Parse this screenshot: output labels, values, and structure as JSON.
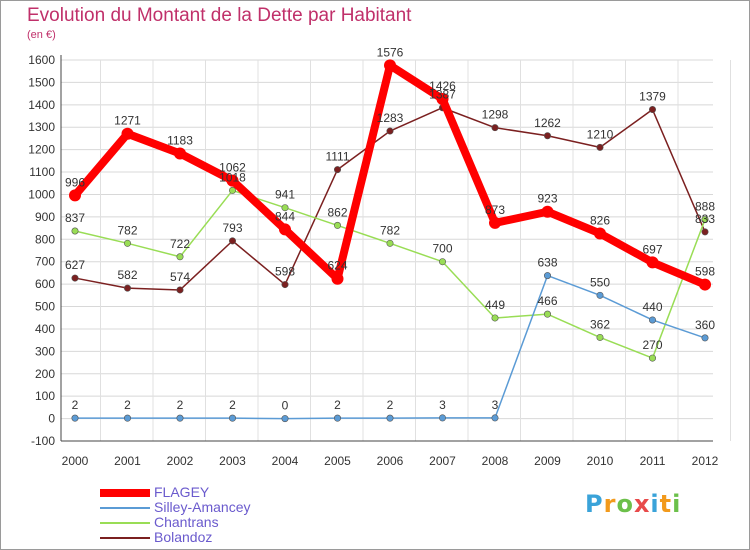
{
  "header": {
    "title": "Evolution du Montant de la Dette par Habitant",
    "unit": "(en €)"
  },
  "logo": {
    "text": "Proxiti"
  },
  "chart_data": {
    "type": "line",
    "title": "Evolution du Montant de la Dette par Habitant",
    "subtitle": "(en €)",
    "x": [
      "2000",
      "2001",
      "2002",
      "2003",
      "2004",
      "2005",
      "2006",
      "2007",
      "2008",
      "2009",
      "2010",
      "2011",
      "2012"
    ],
    "ylim": [
      -100,
      1600
    ],
    "yticks": [
      -100,
      0,
      100,
      200,
      300,
      400,
      500,
      600,
      700,
      800,
      900,
      1000,
      1100,
      1200,
      1300,
      1400,
      1500,
      1600
    ],
    "grid": true,
    "legend_position": "bottom-left",
    "series": [
      {
        "name": "FLAGEY",
        "color": "#ff0000",
        "values": [
          996,
          1271,
          1183,
          1062,
          844,
          624,
          1576,
          1426,
          873,
          923,
          826,
          697,
          598
        ],
        "labels": [
          "996",
          "1271",
          "1183",
          "1062",
          "844",
          "624",
          "1576",
          "1426",
          "873",
          "923",
          "826",
          "697",
          "598"
        ]
      },
      {
        "name": "Silley-Amancey",
        "color": "#5b9bd5",
        "values": [
          2,
          2,
          2,
          2,
          0,
          2,
          2,
          3,
          3,
          638,
          550,
          440,
          360
        ],
        "labels": [
          "2",
          "2",
          "2",
          "2",
          "0",
          "2",
          "2",
          "3",
          "3",
          "638",
          "550",
          "440",
          "360"
        ]
      },
      {
        "name": "Chantrans",
        "color": "#99dd55",
        "values": [
          837,
          782,
          722,
          1018,
          941,
          862,
          782,
          700,
          449,
          466,
          362,
          270,
          888
        ],
        "labels": [
          "837",
          "782",
          "722",
          "1018",
          "941",
          "862",
          "782",
          "700",
          "449",
          "466",
          "362",
          "270",
          "888"
        ]
      },
      {
        "name": "Bolandoz",
        "color": "#7b2020",
        "values": [
          627,
          582,
          574,
          793,
          598,
          1111,
          1283,
          1387,
          1298,
          1262,
          1210,
          1379,
          833
        ],
        "labels": [
          "627",
          "582",
          "574",
          "793",
          "598",
          "1111",
          "1283",
          "1387",
          "1298",
          "1262",
          "1210",
          "1379",
          "833"
        ]
      }
    ]
  }
}
